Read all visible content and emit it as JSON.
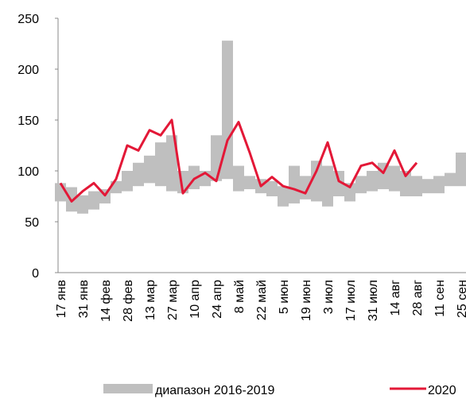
{
  "chart_data": {
    "type": "line",
    "categories": [
      "17 янв",
      null,
      "31 янв",
      null,
      "14 фев",
      null,
      "28 фев",
      null,
      "13 мар",
      null,
      "27 мар",
      null,
      "10 апр",
      null,
      "24 апр",
      null,
      "8 май",
      null,
      "22 май",
      null,
      "5 июн",
      null,
      "19 июн",
      null,
      "3 июл",
      null,
      "17 июл",
      null,
      "31 июл",
      null,
      "14 авг",
      null,
      "28 авг",
      null,
      "11 сен",
      null,
      "25 сен"
    ],
    "range": {
      "name": "диапазон 2016-2019",
      "color": "#bfbfbf",
      "low": [
        70,
        60,
        58,
        62,
        68,
        78,
        80,
        85,
        88,
        85,
        80,
        78,
        82,
        85,
        90,
        92,
        80,
        82,
        78,
        75,
        65,
        68,
        72,
        70,
        65,
        75,
        70,
        78,
        80,
        82,
        80,
        75,
        75,
        78,
        78,
        85,
        85
      ],
      "high": [
        88,
        84,
        76,
        80,
        82,
        90,
        100,
        108,
        115,
        128,
        135,
        100,
        105,
        100,
        135,
        228,
        105,
        95,
        92,
        90,
        85,
        105,
        95,
        110,
        105,
        100,
        88,
        95,
        100,
        108,
        105,
        100,
        95,
        92,
        95,
        98,
        118
      ]
    },
    "series": [
      {
        "name": "2020",
        "color": "#e31837",
        "values": [
          88,
          70,
          80,
          88,
          76,
          92,
          125,
          120,
          140,
          135,
          150,
          78,
          92,
          98,
          90,
          130,
          148,
          118,
          85,
          94,
          85,
          82,
          78,
          100,
          128,
          90,
          84,
          105,
          108,
          98,
          120,
          95,
          108,
          null,
          null,
          null,
          null
        ]
      }
    ],
    "ylim": [
      0,
      250
    ],
    "yticks": [
      0,
      50,
      100,
      150,
      200,
      250
    ],
    "grid": false
  }
}
